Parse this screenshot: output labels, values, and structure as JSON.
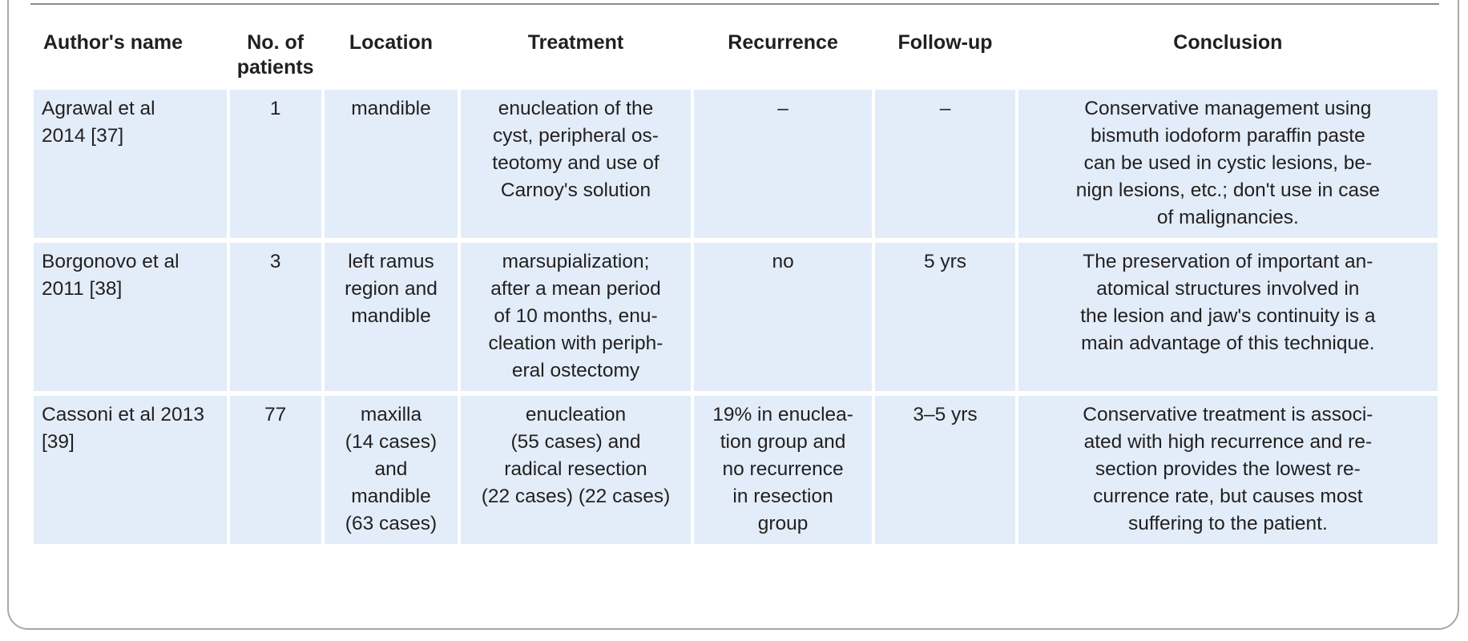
{
  "table": {
    "headers": [
      [
        "Author's name"
      ],
      [
        "No. of",
        "patients"
      ],
      [
        "Location"
      ],
      [
        "Treatment"
      ],
      [
        "Recurrence"
      ],
      [
        "Follow-up"
      ],
      [
        "Conclusion"
      ]
    ],
    "rows": [
      {
        "author": [
          "Agrawal et al",
          "2014 [37]"
        ],
        "patients": [
          "1"
        ],
        "location": [
          "mandible"
        ],
        "treatment": [
          "enucleation of the",
          "cyst, peripheral os-",
          "teotomy and use of",
          "Carnoy's solution"
        ],
        "recurrence": [
          "–"
        ],
        "followup": [
          "–"
        ],
        "conclusion": [
          "Conservative management using",
          "bismuth iodoform paraffin paste",
          "can be used in cystic lesions, be-",
          "nign lesions, etc.; don't use in case",
          "of malignancies."
        ]
      },
      {
        "author": [
          "Borgonovo et al",
          "2011 [38]"
        ],
        "patients": [
          "3"
        ],
        "location": [
          "left ramus",
          "region and",
          "mandible"
        ],
        "treatment": [
          "marsupialization;",
          "after a mean period",
          "of 10 months, enu-",
          "cleation with periph-",
          "eral ostectomy"
        ],
        "recurrence": [
          "no"
        ],
        "followup": [
          "5 yrs"
        ],
        "conclusion": [
          "The preservation of important an-",
          "atomical structures involved in",
          "the lesion and jaw's continuity is a",
          "main advantage of this technique."
        ]
      },
      {
        "author": [
          "Cassoni et al 2013",
          "[39]"
        ],
        "patients": [
          "77"
        ],
        "location": [
          "maxilla",
          "(14 cases)",
          "and",
          "mandible",
          "(63 cases)"
        ],
        "treatment": [
          "enucleation",
          "(55 cases) and",
          "radical resection",
          "(22 cases) (22 cases)"
        ],
        "recurrence": [
          "19% in enuclea-",
          "tion group and",
          "no recurrence",
          "in resection",
          "group"
        ],
        "followup": [
          "3–5 yrs"
        ],
        "conclusion": [
          "Conservative treatment is associ-",
          "ated with high recurrence and re-",
          "section provides the lowest re-",
          "currence rate, but causes most",
          "suffering to the patient."
        ]
      }
    ]
  }
}
